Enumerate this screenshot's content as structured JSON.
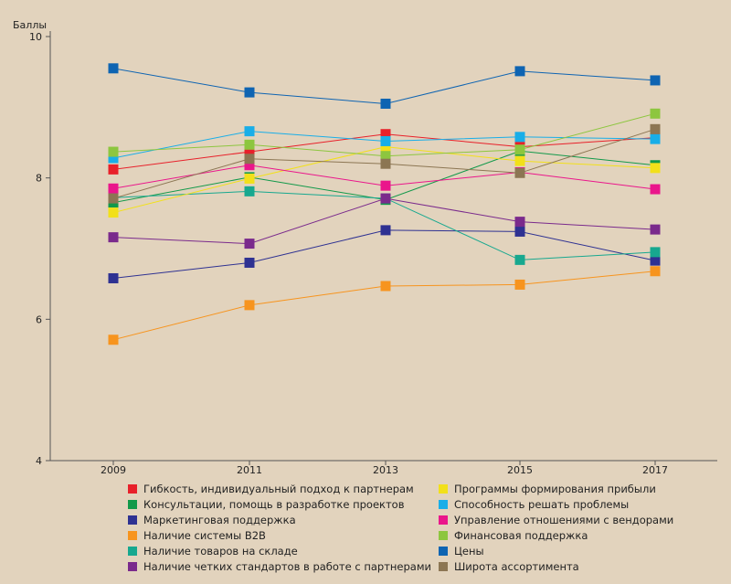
{
  "chart_data": {
    "type": "line",
    "ylabel": "Баллы",
    "ylim": [
      4,
      10
    ],
    "yticks": [
      4,
      6,
      8,
      10
    ],
    "categories": [
      "2009",
      "2011",
      "2013",
      "2015",
      "2017"
    ],
    "grid": false,
    "legend_position": "bottom",
    "series": [
      {
        "name": "Гибкость, индивидуальный подход к партнерам",
        "color": "#e8202a",
        "values": [
          8.12,
          8.37,
          8.62,
          8.44,
          8.57
        ]
      },
      {
        "name": "Консультации, помощь в разработке проектов",
        "color": "#12994a",
        "values": [
          7.65,
          8.01,
          7.69,
          8.38,
          8.18
        ]
      },
      {
        "name": "Маркетинговая поддержка",
        "color": "#2e3192",
        "values": [
          6.58,
          6.8,
          7.26,
          7.24,
          6.83
        ]
      },
      {
        "name": "Наличие системы B2B",
        "color": "#f7941e",
        "values": [
          5.71,
          6.2,
          6.47,
          6.49,
          6.68
        ]
      },
      {
        "name": "Наличие товаров на складе",
        "color": "#17a88f",
        "values": [
          7.72,
          7.81,
          7.71,
          6.84,
          6.95
        ]
      },
      {
        "name": "Наличие четких стандартов в работе с партнерами",
        "color": "#7a2a8c",
        "values": [
          7.16,
          7.07,
          7.71,
          7.38,
          7.27
        ]
      },
      {
        "name": "Программы формирования прибыли",
        "color": "#f2e01a",
        "values": [
          7.51,
          7.99,
          8.44,
          8.24,
          8.14
        ]
      },
      {
        "name": "Способность решать проблемы",
        "color": "#19aee8",
        "values": [
          8.28,
          8.66,
          8.52,
          8.58,
          8.55
        ]
      },
      {
        "name": "Управление отношениями с вендорами",
        "color": "#ea168b",
        "values": [
          7.85,
          8.18,
          7.89,
          8.08,
          7.84
        ]
      },
      {
        "name": "Финансовая поддержка",
        "color": "#8dc63f",
        "values": [
          8.37,
          8.47,
          8.31,
          8.4,
          8.91
        ]
      },
      {
        "name": "Цены",
        "color": "#0e64b2",
        "values": [
          9.55,
          9.21,
          9.05,
          9.51,
          9.38
        ]
      },
      {
        "name": "Широта ассортимента",
        "color": "#8c7653",
        "values": [
          7.71,
          8.27,
          8.2,
          8.07,
          8.69
        ]
      }
    ]
  }
}
